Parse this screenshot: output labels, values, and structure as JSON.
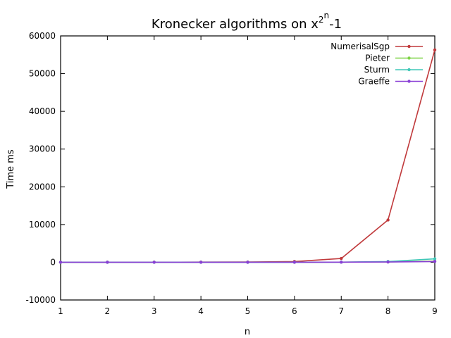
{
  "chart_data": {
    "type": "line",
    "title": {
      "base": "Kronecker algorithms on x",
      "sup_exponent": "2",
      "sup_sup_exponent": "n",
      "suffix": "-1"
    },
    "xlabel": "n",
    "ylabel": "Time ms",
    "xlim": [
      1,
      9
    ],
    "ylim": [
      -10000,
      60000
    ],
    "x_ticks": [
      "1",
      "2",
      "3",
      "4",
      "5",
      "6",
      "7",
      "8",
      "9"
    ],
    "y_ticks": [
      "-10000",
      "0",
      "10000",
      "20000",
      "30000",
      "40000",
      "50000",
      "60000"
    ],
    "grid": false,
    "legend_position": "top-right",
    "x": [
      1,
      2,
      3,
      4,
      5,
      6,
      7,
      8,
      9
    ],
    "series": [
      {
        "name": "NumerisalSgp",
        "color": "#c0393b",
        "values": [
          10,
          15,
          20,
          35,
          60,
          200,
          1000,
          11200,
          56300
        ]
      },
      {
        "name": "Pieter",
        "color": "#7ed346",
        "values": [
          0,
          0,
          0,
          0,
          0,
          5,
          20,
          80,
          300
        ]
      },
      {
        "name": "Sturm",
        "color": "#3fc7b7",
        "values": [
          0,
          0,
          0,
          0,
          0,
          10,
          30,
          200,
          900
        ]
      },
      {
        "name": "Graeffe",
        "color": "#8a3fd6",
        "values": [
          0,
          0,
          0,
          0,
          0,
          5,
          15,
          60,
          200
        ]
      }
    ]
  }
}
